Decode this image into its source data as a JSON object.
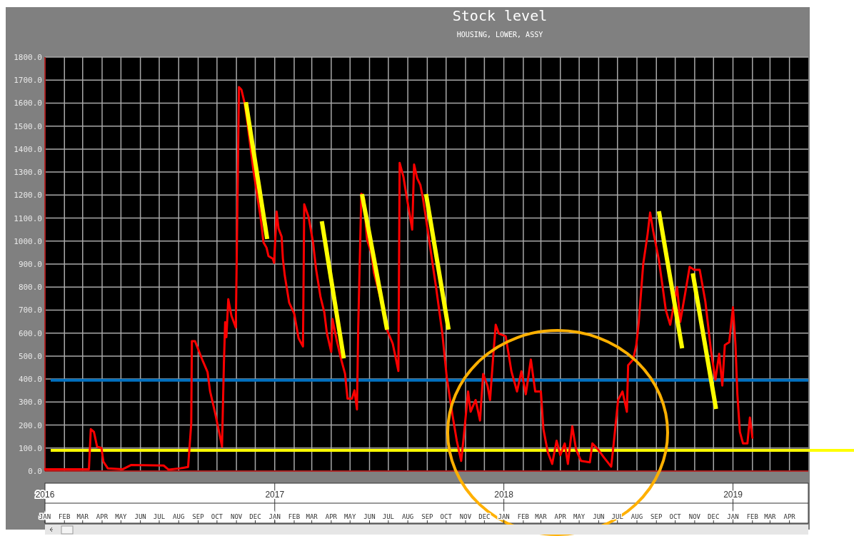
{
  "chart_data": {
    "type": "line",
    "title": "Stock level",
    "subtitle": "HOUSING, LOWER, ASSY",
    "xlim": [
      "2016-01-01",
      "2019-05-01"
    ],
    "xticks": [
      {
        "value": "2016-01-01",
        "label": "JAN"
      },
      {
        "value": "2016-02-01",
        "label": "FEB"
      },
      {
        "value": "2016-03-01",
        "label": "MAR"
      },
      {
        "value": "2016-04-01",
        "label": "APR"
      },
      {
        "value": "2016-05-01",
        "label": "MAY"
      },
      {
        "value": "2016-06-01",
        "label": "JUN"
      },
      {
        "value": "2016-07-01",
        "label": "JUL"
      },
      {
        "value": "2016-08-01",
        "label": "AUG"
      },
      {
        "value": "2016-09-01",
        "label": "SEP"
      },
      {
        "value": "2016-10-01",
        "label": "OCT"
      },
      {
        "value": "2016-11-01",
        "label": "NOV"
      },
      {
        "value": "2016-12-01",
        "label": "DEC"
      },
      {
        "value": "2017-01-01",
        "label": "JAN"
      },
      {
        "value": "2017-02-01",
        "label": "FEB"
      },
      {
        "value": "2017-03-01",
        "label": "MAR"
      },
      {
        "value": "2017-04-01",
        "label": "APR"
      },
      {
        "value": "2017-05-01",
        "label": "MAY"
      },
      {
        "value": "2017-06-01",
        "label": "JUN"
      },
      {
        "value": "2017-07-01",
        "label": "JUL"
      },
      {
        "value": "2017-08-01",
        "label": "AUG"
      },
      {
        "value": "2017-09-01",
        "label": "SEP"
      },
      {
        "value": "2017-10-01",
        "label": "OCT"
      },
      {
        "value": "2017-11-01",
        "label": "NOV"
      },
      {
        "value": "2017-12-01",
        "label": "DEC"
      },
      {
        "value": "2018-01-01",
        "label": "JAN"
      },
      {
        "value": "2018-02-01",
        "label": "FEB"
      },
      {
        "value": "2018-03-01",
        "label": "MAR"
      },
      {
        "value": "2018-04-01",
        "label": "APR"
      },
      {
        "value": "2018-05-01",
        "label": "MAY"
      },
      {
        "value": "2018-06-01",
        "label": "JUN"
      },
      {
        "value": "2018-07-01",
        "label": "JUL"
      },
      {
        "value": "2018-08-01",
        "label": "AUG"
      },
      {
        "value": "2018-09-01",
        "label": "SEP"
      },
      {
        "value": "2018-10-01",
        "label": "OCT"
      },
      {
        "value": "2018-11-01",
        "label": "NOV"
      },
      {
        "value": "2018-12-01",
        "label": "DEC"
      },
      {
        "value": "2019-01-01",
        "label": "JAN"
      },
      {
        "value": "2019-02-01",
        "label": "FEB"
      },
      {
        "value": "2019-03-01",
        "label": "MAR"
      },
      {
        "value": "2019-04-01",
        "label": "APR"
      }
    ],
    "x2lim": [
      "2016-01-01",
      "2019-05-01"
    ],
    "x2ticks": [
      {
        "value": "2016-01-01",
        "label": "2016"
      },
      {
        "value": "2017-01-01",
        "label": "2017"
      },
      {
        "value": "2018-01-01",
        "label": "2018"
      },
      {
        "value": "2019-01-01",
        "label": "2019"
      }
    ],
    "ylim": [
      0,
      1800
    ],
    "yticks": [
      {
        "value": 0,
        "label": "0.0"
      },
      {
        "value": 100,
        "label": "100.0"
      },
      {
        "value": 200,
        "label": "200.0"
      },
      {
        "value": 300,
        "label": "300.0"
      },
      {
        "value": 400,
        "label": "400.0"
      },
      {
        "value": 500,
        "label": "500.0"
      },
      {
        "value": 600,
        "label": "600.0"
      },
      {
        "value": 700,
        "label": "700.0"
      },
      {
        "value": 800,
        "label": "800.0"
      },
      {
        "value": 900,
        "label": "900.0"
      },
      {
        "value": 1000,
        "label": "1000.0"
      },
      {
        "value": 1100,
        "label": "1100.0"
      },
      {
        "value": 1200,
        "label": "1200.0"
      },
      {
        "value": 1300,
        "label": "1300.0"
      },
      {
        "value": 1400,
        "label": "1400.0"
      },
      {
        "value": 1500,
        "label": "1500.0"
      },
      {
        "value": 1600,
        "label": "1600.0"
      },
      {
        "value": 1700,
        "label": "1700.0"
      },
      {
        "value": 1800,
        "label": "1800.0"
      }
    ],
    "grid": true,
    "ref_lines": [
      {
        "axis": "y",
        "value": 395,
        "color": "#0070c0"
      },
      {
        "axis": "y",
        "value": 90,
        "color": "#ffff00"
      }
    ],
    "series": [
      {
        "color": "#ff0000",
        "x": [
          "2016-01-01",
          "2016-03-11",
          "2016-03-14",
          "2016-03-19",
          "2016-03-24",
          "2016-03-31",
          "2016-04-03",
          "2016-04-10",
          "2016-05-04",
          "2016-05-17",
          "2016-07-08",
          "2016-07-16",
          "2016-08-04",
          "2016-08-16",
          "2016-08-21",
          "2016-08-22",
          "2016-08-27",
          "2016-09-07",
          "2016-09-16",
          "2016-09-20",
          "2016-09-28",
          "2016-10-07",
          "2016-10-09",
          "2016-10-12",
          "2016-10-14",
          "2016-10-16",
          "2016-10-19",
          "2016-10-24",
          "2016-10-31",
          "2016-11-05",
          "2016-11-09",
          "2016-11-14",
          "2016-11-18",
          "2016-11-28",
          "2016-12-10",
          "2016-12-14",
          "2016-12-19",
          "2016-12-22",
          "2016-12-29",
          "2016-12-31",
          "2017-01-04",
          "2017-01-07",
          "2017-01-12",
          "2017-01-14",
          "2017-01-17",
          "2017-01-24",
          "2017-02-01",
          "2017-02-08",
          "2017-02-15",
          "2017-02-17",
          "2017-02-24",
          "2017-03-03",
          "2017-03-08",
          "2017-03-15",
          "2017-03-21",
          "2017-03-25",
          "2017-04-01",
          "2017-04-03",
          "2017-04-10",
          "2017-04-16",
          "2017-04-23",
          "2017-04-27",
          "2017-05-04",
          "2017-05-08",
          "2017-05-12",
          "2017-05-14",
          "2017-05-19",
          "2017-05-23",
          "2017-05-28",
          "2017-06-04",
          "2017-06-08",
          "2017-06-18",
          "2017-06-29",
          "2017-07-08",
          "2017-07-17",
          "2017-07-19",
          "2017-07-25",
          "2017-07-29",
          "2017-08-04",
          "2017-08-08",
          "2017-08-11",
          "2017-08-16",
          "2017-08-21",
          "2017-08-25",
          "2017-09-02",
          "2017-09-11",
          "2017-09-15",
          "2017-09-25",
          "2017-10-02",
          "2017-10-11",
          "2017-10-18",
          "2017-10-25",
          "2017-10-29",
          "2017-11-05",
          "2017-11-09",
          "2017-11-17",
          "2017-11-24",
          "2017-11-29",
          "2017-12-06",
          "2017-12-10",
          "2017-12-15",
          "2017-12-19",
          "2017-12-24",
          "2018-01-04",
          "2018-01-13",
          "2018-01-22",
          "2018-01-29",
          "2018-02-05",
          "2018-02-13",
          "2018-02-20",
          "2018-03-01",
          "2018-03-05",
          "2018-03-12",
          "2018-03-19",
          "2018-03-26",
          "2018-04-01",
          "2018-04-08",
          "2018-04-13",
          "2018-04-20",
          "2018-04-26",
          "2018-05-04",
          "2018-05-18",
          "2018-05-22",
          "2018-05-31",
          "2018-06-10",
          "2018-06-21",
          "2018-06-25",
          "2018-07-02",
          "2018-07-09",
          "2018-07-16",
          "2018-07-18",
          "2018-07-26",
          "2018-07-31",
          "2018-08-04",
          "2018-08-11",
          "2018-08-18",
          "2018-08-22",
          "2018-08-27",
          "2018-09-05",
          "2018-09-11",
          "2018-09-16",
          "2018-09-23",
          "2018-10-04",
          "2018-10-09",
          "2018-10-17",
          "2018-10-24",
          "2018-10-31",
          "2018-11-09",
          "2018-11-18",
          "2018-11-27",
          "2018-12-04",
          "2018-12-10",
          "2018-12-15",
          "2018-12-19",
          "2018-12-26",
          "2019-01-01",
          "2019-01-05",
          "2019-01-08",
          "2019-01-12",
          "2019-01-17",
          "2019-01-24",
          "2019-01-28",
          "2019-02-01"
        ],
        "values": [
          8,
          8,
          182,
          170,
          106,
          100,
          41,
          12,
          8,
          26,
          24,
          6,
          12,
          18,
          206,
          565,
          565,
          488,
          430,
          347,
          253,
          135,
          106,
          465,
          647,
          582,
          747,
          676,
          624,
          1670,
          1658,
          1600,
          1525,
          1308,
          1092,
          995,
          971,
          935,
          923,
          905,
          1128,
          1055,
          1019,
          923,
          850,
          732,
          685,
          577,
          542,
          1160,
          1104,
          995,
          875,
          756,
          690,
          601,
          518,
          661,
          565,
          494,
          423,
          315,
          315,
          351,
          268,
          625,
          1206,
          1188,
          1007,
          947,
          863,
          756,
          613,
          554,
          435,
          1340,
          1280,
          1212,
          1116,
          1050,
          1333,
          1273,
          1244,
          1188,
          1043,
          873,
          800,
          598,
          409,
          246,
          132,
          44,
          145,
          346,
          258,
          309,
          220,
          422,
          371,
          309,
          497,
          636,
          598,
          586,
          434,
          346,
          434,
          334,
          485,
          346,
          346,
          183,
          82,
          31,
          132,
          69,
          120,
          31,
          195,
          94,
          44,
          38,
          120,
          94,
          57,
          19,
          120,
          309,
          346,
          258,
          460,
          485,
          548,
          650,
          900,
          1030,
          1124,
          1043,
          917,
          800,
          700,
          636,
          800,
          649,
          775,
          888,
          875,
          875,
          737,
          523,
          397,
          510,
          372,
          548,
          560,
          712,
          548,
          334,
          170,
          120,
          120,
          233,
          145
        ]
      },
      {
        "color": "#ffff00",
        "x": [
          "2016-11-16",
          "2016-12-20"
        ],
        "values": [
          1604,
          1009
        ]
      },
      {
        "color": "#ffff00",
        "x": [
          "2017-03-17",
          "2017-04-21"
        ],
        "values": [
          1086,
          490
        ]
      },
      {
        "color": "#ffff00",
        "x": [
          "2017-05-20",
          "2017-06-29"
        ],
        "values": [
          1204,
          615
        ]
      },
      {
        "color": "#ffff00",
        "x": [
          "2017-08-30",
          "2017-10-05"
        ],
        "values": [
          1204,
          615
        ]
      },
      {
        "color": "#ffff00",
        "x": [
          "2018-09-05",
          "2018-10-12"
        ],
        "values": [
          1130,
          534
        ]
      },
      {
        "color": "#ffff00",
        "x": [
          "2018-10-29",
          "2018-12-05"
        ],
        "values": [
          860,
          270
        ]
      }
    ]
  }
}
